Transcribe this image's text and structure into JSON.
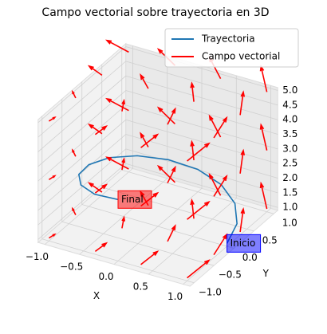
{
  "chart_data": {
    "type": "quiver3d",
    "title": "Campo vectorial sobre trayectoria en 3D",
    "xlabel": "X",
    "ylabel": "Y",
    "xlim": [
      -1.1,
      1.1
    ],
    "ylim": [
      -1.1,
      1.1
    ],
    "zlim": [
      0.9,
      5.1
    ],
    "xticks": [
      {
        "value": -1,
        "label": "−1.0"
      },
      {
        "value": -0.5,
        "label": "−0.5"
      },
      {
        "value": 0,
        "label": "0.0"
      },
      {
        "value": 0.5,
        "label": "0.5"
      },
      {
        "value": 1,
        "label": "1.0"
      }
    ],
    "yticks": [
      {
        "value": -1,
        "label": "−1.0"
      },
      {
        "value": -0.5,
        "label": "−0.5"
      },
      {
        "value": 0,
        "label": "0.0"
      },
      {
        "value": 0.5,
        "label": "0.5"
      },
      {
        "value": 1,
        "label": "1.0"
      }
    ],
    "zticks": [
      {
        "value": 1,
        "label": "1.0"
      },
      {
        "value": 1.5,
        "label": "1.5"
      },
      {
        "value": 2,
        "label": "2.0"
      },
      {
        "value": 2.5,
        "label": "2.5"
      },
      {
        "value": 3,
        "label": "3.0"
      },
      {
        "value": 3.5,
        "label": "3.5"
      },
      {
        "value": 4,
        "label": "4.0"
      },
      {
        "value": 4.5,
        "label": "4.5"
      },
      {
        "value": 5,
        "label": "5.0"
      }
    ],
    "grid": true,
    "legend": "upper right",
    "series": [
      {
        "name": "Trayectoria",
        "color": "#1f77b4",
        "x": [
          1,
          0.924,
          0.707,
          0.383,
          0,
          -0.383,
          -0.707,
          -0.924,
          -1,
          -0.924,
          -0.707,
          -0.383,
          0
        ],
        "y": [
          0,
          0.383,
          0.707,
          0.924,
          1,
          0.924,
          0.707,
          0.383,
          0,
          -0.383,
          -0.707,
          -0.924,
          -1
        ],
        "z": [
          1,
          1.17,
          1.33,
          1.5,
          1.67,
          1.83,
          2,
          2.17,
          2.33,
          2.5,
          2.67,
          2.83,
          3
        ]
      },
      {
        "name": "Campo vectorial",
        "color": "#ff0000",
        "x": [
          -1,
          -1,
          -1,
          -1,
          -1,
          -1,
          -1,
          -1,
          -1,
          -1,
          -1,
          -1,
          -0.33,
          -0.33,
          -0.33,
          -0.33,
          -0.33,
          -0.33,
          -0.33,
          -0.33,
          -0.33,
          -0.33,
          -0.33,
          -0.33,
          0.33,
          0.33,
          0.33,
          0.33,
          0.33,
          0.33,
          0.33,
          0.33,
          0.33,
          0.33,
          0.33,
          0.33,
          1,
          1,
          1,
          1,
          1,
          1,
          1,
          1,
          1,
          1,
          1,
          1
        ],
        "y": [
          -1,
          -1,
          -1,
          -0.33,
          -0.33,
          -0.33,
          0.33,
          0.33,
          0.33,
          1,
          1,
          1,
          -1,
          -1,
          -1,
          -0.33,
          -0.33,
          -0.33,
          0.33,
          0.33,
          0.33,
          1,
          1,
          1,
          -1,
          -1,
          -1,
          -0.33,
          -0.33,
          -0.33,
          0.33,
          0.33,
          0.33,
          1,
          1,
          1,
          -1,
          -1,
          -1,
          -0.33,
          -0.33,
          -0.33,
          0.33,
          0.33,
          0.33,
          1,
          1,
          1
        ],
        "z": [
          1,
          3,
          5,
          1,
          3,
          5,
          1,
          3,
          5,
          1,
          3,
          5,
          1,
          3,
          5,
          1,
          3,
          5,
          1,
          3,
          5,
          1,
          3,
          5,
          1,
          3,
          5,
          1,
          3,
          5,
          1,
          3,
          5,
          1,
          3,
          5,
          1,
          3,
          5,
          1,
          3,
          5,
          1,
          3,
          5,
          1,
          3,
          5
        ],
        "u": [
          0.2,
          0.2,
          0.2,
          0.07,
          0.07,
          0.07,
          -0.07,
          -0.07,
          -0.07,
          -0.2,
          -0.2,
          -0.2,
          0.2,
          0.2,
          0.2,
          0.07,
          0.07,
          0.07,
          -0.07,
          -0.07,
          -0.07,
          -0.2,
          -0.2,
          -0.2,
          0.2,
          0.2,
          0.2,
          0.07,
          0.07,
          0.07,
          -0.07,
          -0.07,
          -0.07,
          -0.2,
          -0.2,
          -0.2,
          0.2,
          0.2,
          0.2,
          0.07,
          0.07,
          0.07,
          -0.07,
          -0.07,
          -0.07,
          -0.2,
          -0.2,
          -0.2
        ],
        "v": [
          -0.2,
          -0.2,
          -0.2,
          -0.2,
          -0.2,
          -0.2,
          -0.2,
          -0.2,
          -0.2,
          -0.2,
          -0.2,
          -0.2,
          -0.07,
          -0.07,
          -0.07,
          -0.07,
          -0.07,
          -0.07,
          -0.07,
          -0.07,
          -0.07,
          -0.07,
          -0.07,
          -0.07,
          0.07,
          0.07,
          0.07,
          0.07,
          0.07,
          0.07,
          0.07,
          0.07,
          0.07,
          0.07,
          0.07,
          0.07,
          0.2,
          0.2,
          0.2,
          0.2,
          0.2,
          0.2,
          0.2,
          0.2,
          0.2,
          0.2,
          0.2,
          0.2
        ],
        "w": [
          0.5,
          0.5,
          0.5,
          0.5,
          0.5,
          0.5,
          0.5,
          0.5,
          0.5,
          0.5,
          0.5,
          0.5,
          0.5,
          0.5,
          0.5,
          0.5,
          0.5,
          0.5,
          0.5,
          0.5,
          0.5,
          0.5,
          0.5,
          0.5,
          0.5,
          0.5,
          0.5,
          0.5,
          0.5,
          0.5,
          0.5,
          0.5,
          0.5,
          0.5,
          0.5,
          0.5,
          0.5,
          0.5,
          0.5,
          0.5,
          0.5,
          0.5,
          0.5,
          0.5,
          0.5,
          0.5,
          0.5,
          0.5
        ]
      }
    ],
    "annotations": [
      {
        "text": "Inicio",
        "color": "#0000ff"
      },
      {
        "text": "Final",
        "color": "#ff0000"
      }
    ]
  }
}
